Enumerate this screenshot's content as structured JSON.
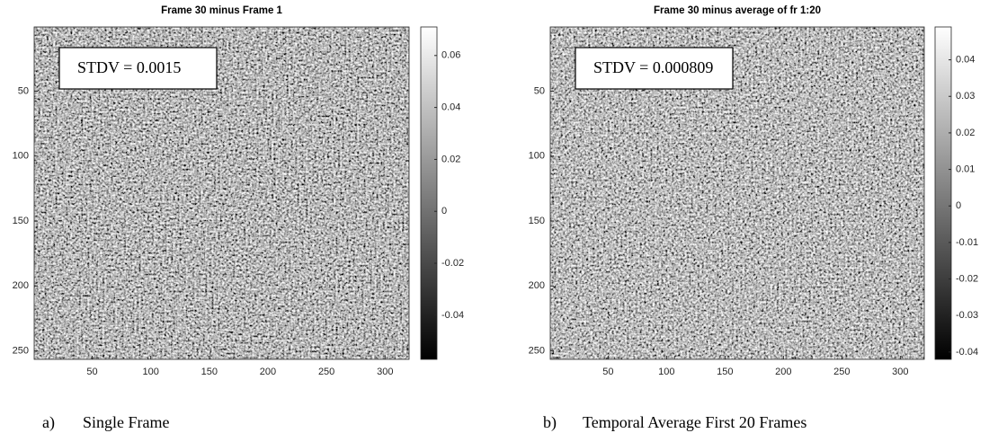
{
  "chart_data": [
    {
      "type": "heatmap",
      "title": "Frame 30 minus Frame 1",
      "annotation": "STDV = 0.0015",
      "caption_label": "a)",
      "caption": "Single Frame",
      "colormap": "gray",
      "xlim": [
        0.5,
        320.5
      ],
      "xticks": [
        50,
        100,
        150,
        200,
        250,
        300
      ],
      "ylim": [
        0.5,
        256.5
      ],
      "yticks": [
        50,
        100,
        150,
        200,
        250
      ],
      "y_reversed": true,
      "colorbar_lim": [
        -0.057,
        0.071
      ],
      "colorbar_ticks": [
        -0.04,
        -0.02,
        0,
        0.02,
        0.04,
        0.06
      ]
    },
    {
      "type": "heatmap",
      "title": "Frame 30 minus average of fr 1:20",
      "annotation": "STDV = 0.000809",
      "caption_label": "b)",
      "caption": "Temporal Average First 20 Frames",
      "colormap": "gray",
      "xlim": [
        0.5,
        320.5
      ],
      "xticks": [
        50,
        100,
        150,
        200,
        250,
        300
      ],
      "ylim": [
        0.5,
        256.5
      ],
      "yticks": [
        50,
        100,
        150,
        200,
        250
      ],
      "y_reversed": true,
      "colorbar_lim": [
        -0.042,
        0.049
      ],
      "colorbar_ticks": [
        -0.04,
        -0.03,
        -0.02,
        -0.01,
        0,
        0.01,
        0.02,
        0.03,
        0.04
      ]
    }
  ]
}
